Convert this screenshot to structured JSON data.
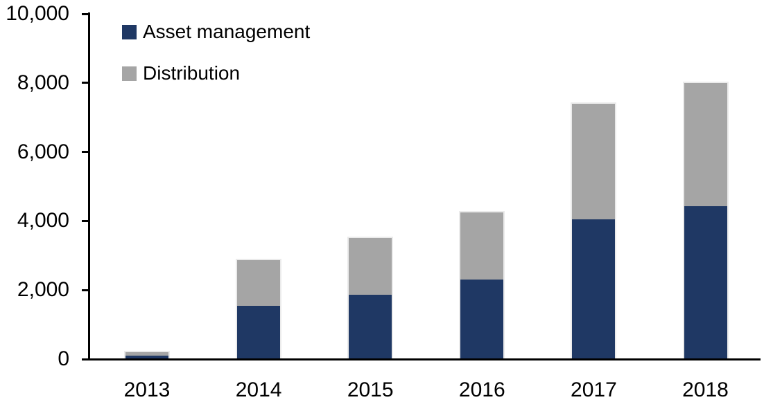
{
  "chart_data": {
    "type": "bar",
    "stacked": true,
    "title": "",
    "xlabel": "",
    "ylabel": "",
    "categories": [
      "2013",
      "2014",
      "2015",
      "2016",
      "2017",
      "2018"
    ],
    "series": [
      {
        "name": "Asset management",
        "color": "#1F3864",
        "values": [
          110,
          1550,
          1870,
          2300,
          4040,
          4430
        ]
      },
      {
        "name": "Distribution",
        "color": "#A5A5A5",
        "values": [
          100,
          1310,
          1630,
          1950,
          3350,
          3570
        ]
      }
    ],
    "totals": [
      210,
      2860,
      3500,
      4250,
      7390,
      8000
    ],
    "ylim": [
      0,
      10000
    ],
    "yticks": [
      0,
      2000,
      4000,
      6000,
      8000,
      10000
    ],
    "ytick_labels": [
      "0",
      "2,000",
      "4,000",
      "6,000",
      "8,000",
      "10,000"
    ],
    "grid": false,
    "legend_position": "top-left",
    "axis_color": "#000000",
    "background_color": "#FFFFFF"
  },
  "legend": {
    "items": [
      {
        "label": "Asset management",
        "color": "#1F3864"
      },
      {
        "label": "Distribution",
        "color": "#A5A5A5"
      }
    ]
  }
}
